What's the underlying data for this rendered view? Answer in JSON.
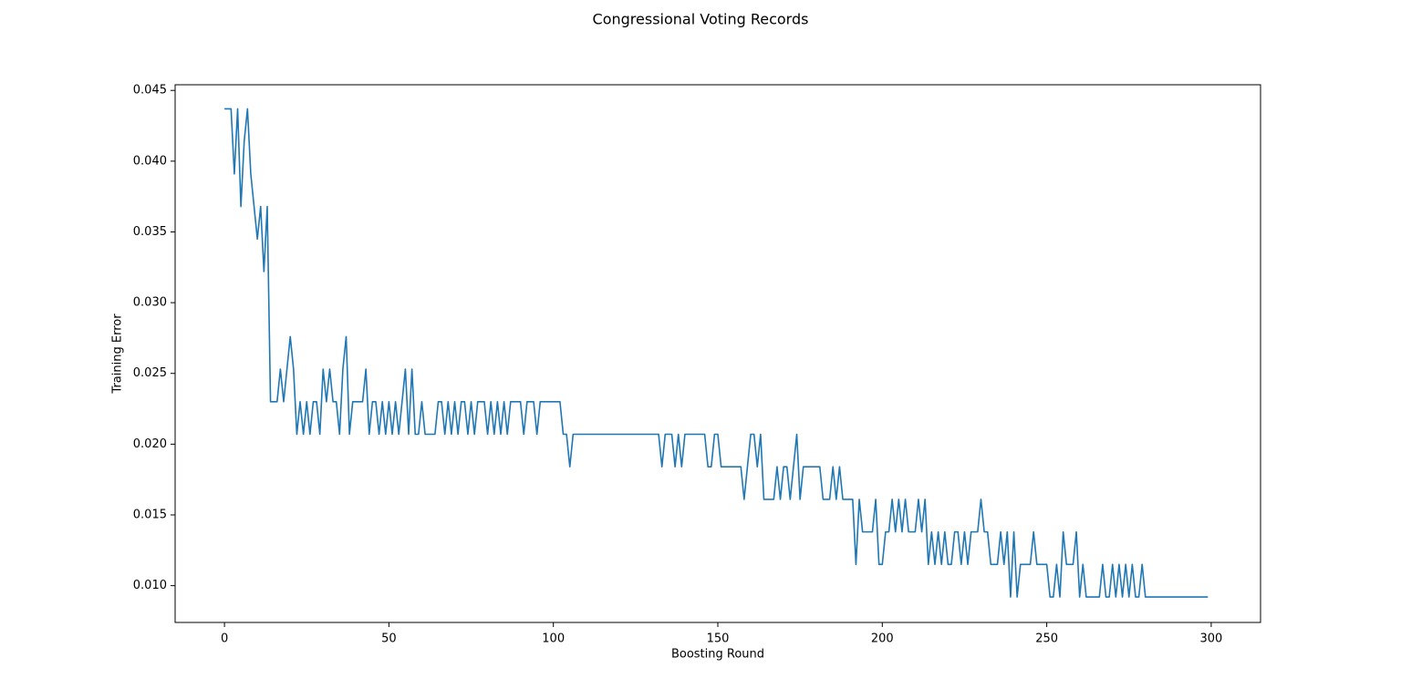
{
  "chart_data": {
    "type": "line",
    "title": "Congressional Voting Records",
    "x_label": "Boosting Round",
    "y_label": "Training Error",
    "color": "#1f77b4",
    "xlim": [
      -15,
      315
    ],
    "ylim": [
      0.0074,
      0.0454
    ],
    "xticks": [
      0,
      50,
      100,
      150,
      200,
      250,
      300
    ],
    "yticks": [
      {
        "value": 0.01,
        "label": "0.010"
      },
      0.015,
      {
        "value": 0.02,
        "label": "0.020"
      },
      0.025,
      {
        "value": 0.03,
        "label": "0.030"
      },
      0.035,
      {
        "value": 0.04,
        "label": "0.040"
      },
      0.045
    ],
    "x": [
      0,
      1,
      2,
      3,
      4,
      5,
      6,
      7,
      8,
      9,
      10,
      11,
      12,
      13,
      14,
      15,
      16,
      17,
      18,
      19,
      20,
      21,
      22,
      23,
      24,
      25,
      26,
      27,
      28,
      29,
      30,
      31,
      32,
      33,
      34,
      35,
      36,
      37,
      38,
      39,
      40,
      41,
      42,
      43,
      44,
      45,
      46,
      47,
      48,
      49,
      50,
      51,
      52,
      53,
      54,
      55,
      56,
      57,
      58,
      59,
      60,
      61,
      62,
      63,
      64,
      65,
      66,
      67,
      68,
      69,
      70,
      71,
      72,
      73,
      74,
      75,
      76,
      77,
      78,
      79,
      80,
      81,
      82,
      83,
      84,
      85,
      86,
      87,
      88,
      89,
      90,
      91,
      92,
      93,
      94,
      95,
      96,
      97,
      98,
      99,
      100,
      101,
      102,
      103,
      104,
      105,
      106,
      107,
      108,
      109,
      110,
      111,
      112,
      113,
      114,
      115,
      116,
      117,
      118,
      119,
      120,
      121,
      122,
      123,
      124,
      125,
      126,
      127,
      128,
      129,
      130,
      131,
      132,
      133,
      134,
      135,
      136,
      137,
      138,
      139,
      140,
      141,
      142,
      143,
      144,
      145,
      146,
      147,
      148,
      149,
      150,
      151,
      152,
      153,
      154,
      155,
      156,
      157,
      158,
      159,
      160,
      161,
      162,
      163,
      164,
      165,
      166,
      167,
      168,
      169,
      170,
      171,
      172,
      173,
      174,
      175,
      176,
      177,
      178,
      179,
      180,
      181,
      182,
      183,
      184,
      185,
      186,
      187,
      188,
      189,
      190,
      191,
      192,
      193,
      194,
      195,
      196,
      197,
      198,
      199,
      200,
      201,
      202,
      203,
      204,
      205,
      206,
      207,
      208,
      209,
      210,
      211,
      212,
      213,
      214,
      215,
      216,
      217,
      218,
      219,
      220,
      221,
      222,
      223,
      224,
      225,
      226,
      227,
      228,
      229,
      230,
      231,
      232,
      233,
      234,
      235,
      236,
      237,
      238,
      239,
      240,
      241,
      242,
      243,
      244,
      245,
      246,
      247,
      248,
      249,
      250,
      251,
      252,
      253,
      254,
      255,
      256,
      257,
      258,
      259,
      260,
      261,
      262,
      263,
      264,
      265,
      266,
      267,
      268,
      269,
      270,
      271,
      272,
      273,
      274,
      275,
      276,
      277,
      278,
      279,
      280,
      281,
      282,
      283,
      284,
      285,
      286,
      287,
      288,
      289,
      290,
      291,
      292,
      293,
      294,
      295,
      296,
      297,
      298,
      299
    ],
    "values": [
      0.0437,
      0.0437,
      0.0437,
      0.0391,
      0.0437,
      0.0368,
      0.0414,
      0.0437,
      0.0391,
      0.0368,
      0.0345,
      0.0368,
      0.0322,
      0.0368,
      0.023,
      0.023,
      0.023,
      0.0253,
      0.023,
      0.0253,
      0.0276,
      0.0253,
      0.0207,
      0.023,
      0.0207,
      0.023,
      0.0207,
      0.023,
      0.023,
      0.0207,
      0.0253,
      0.023,
      0.0253,
      0.023,
      0.023,
      0.0207,
      0.0253,
      0.0276,
      0.0207,
      0.023,
      0.023,
      0.023,
      0.023,
      0.0253,
      0.0207,
      0.023,
      0.023,
      0.0207,
      0.023,
      0.0207,
      0.023,
      0.0207,
      0.023,
      0.0207,
      0.023,
      0.0253,
      0.0207,
      0.0253,
      0.0207,
      0.0207,
      0.023,
      0.0207,
      0.0207,
      0.0207,
      0.0207,
      0.023,
      0.023,
      0.0207,
      0.023,
      0.0207,
      0.023,
      0.0207,
      0.023,
      0.023,
      0.0207,
      0.023,
      0.0207,
      0.023,
      0.023,
      0.023,
      0.0207,
      0.023,
      0.0207,
      0.023,
      0.0207,
      0.023,
      0.0207,
      0.023,
      0.023,
      0.023,
      0.023,
      0.0207,
      0.023,
      0.023,
      0.023,
      0.0207,
      0.023,
      0.023,
      0.023,
      0.023,
      0.023,
      0.023,
      0.023,
      0.0207,
      0.0207,
      0.0184,
      0.0207,
      0.0207,
      0.0207,
      0.0207,
      0.0207,
      0.0207,
      0.0207,
      0.0207,
      0.0207,
      0.0207,
      0.0207,
      0.0207,
      0.0207,
      0.0207,
      0.0207,
      0.0207,
      0.0207,
      0.0207,
      0.0207,
      0.0207,
      0.0207,
      0.0207,
      0.0207,
      0.0207,
      0.0207,
      0.0207,
      0.0207,
      0.0184,
      0.0207,
      0.0207,
      0.0207,
      0.0184,
      0.0207,
      0.0184,
      0.0207,
      0.0207,
      0.0207,
      0.0207,
      0.0207,
      0.0207,
      0.0207,
      0.0184,
      0.0184,
      0.0207,
      0.0207,
      0.0184,
      0.0184,
      0.0184,
      0.0184,
      0.0184,
      0.0184,
      0.0184,
      0.0161,
      0.0184,
      0.0207,
      0.0207,
      0.0184,
      0.0207,
      0.0161,
      0.0161,
      0.0161,
      0.0161,
      0.0184,
      0.0161,
      0.0184,
      0.0184,
      0.0161,
      0.0184,
      0.0207,
      0.0161,
      0.0184,
      0.0184,
      0.0184,
      0.0184,
      0.0184,
      0.0184,
      0.0161,
      0.0161,
      0.0161,
      0.0184,
      0.0161,
      0.0184,
      0.0161,
      0.0161,
      0.0161,
      0.0161,
      0.0115,
      0.0161,
      0.0138,
      0.0138,
      0.0138,
      0.0138,
      0.0161,
      0.0115,
      0.0115,
      0.0138,
      0.0138,
      0.0161,
      0.0138,
      0.0161,
      0.0138,
      0.0161,
      0.0138,
      0.0138,
      0.0138,
      0.0161,
      0.0138,
      0.0161,
      0.0115,
      0.0138,
      0.0115,
      0.0138,
      0.0115,
      0.0138,
      0.0115,
      0.0115,
      0.0138,
      0.0138,
      0.0115,
      0.0138,
      0.0115,
      0.0138,
      0.0138,
      0.0138,
      0.0161,
      0.0138,
      0.0138,
      0.0115,
      0.0115,
      0.0115,
      0.0138,
      0.0115,
      0.0138,
      0.0092,
      0.0138,
      0.0092,
      0.0115,
      0.0115,
      0.0115,
      0.0115,
      0.0138,
      0.0115,
      0.0115,
      0.0115,
      0.0115,
      0.0092,
      0.0092,
      0.0115,
      0.0092,
      0.0138,
      0.0115,
      0.0115,
      0.0115,
      0.0138,
      0.0092,
      0.0115,
      0.0092,
      0.0092,
      0.0092,
      0.0092,
      0.0092,
      0.0115,
      0.0092,
      0.0092,
      0.0115,
      0.0092,
      0.0115,
      0.0092,
      0.0115,
      0.0092,
      0.0115,
      0.0092,
      0.0092,
      0.0115,
      0.0092,
      0.0092,
      0.0092,
      0.0092,
      0.0092,
      0.0092,
      0.0092,
      0.0092,
      0.0092,
      0.0092,
      0.0092,
      0.0092,
      0.0092,
      0.0092,
      0.0092,
      0.0092,
      0.0092,
      0.0092,
      0.0092,
      0.0092
    ]
  }
}
